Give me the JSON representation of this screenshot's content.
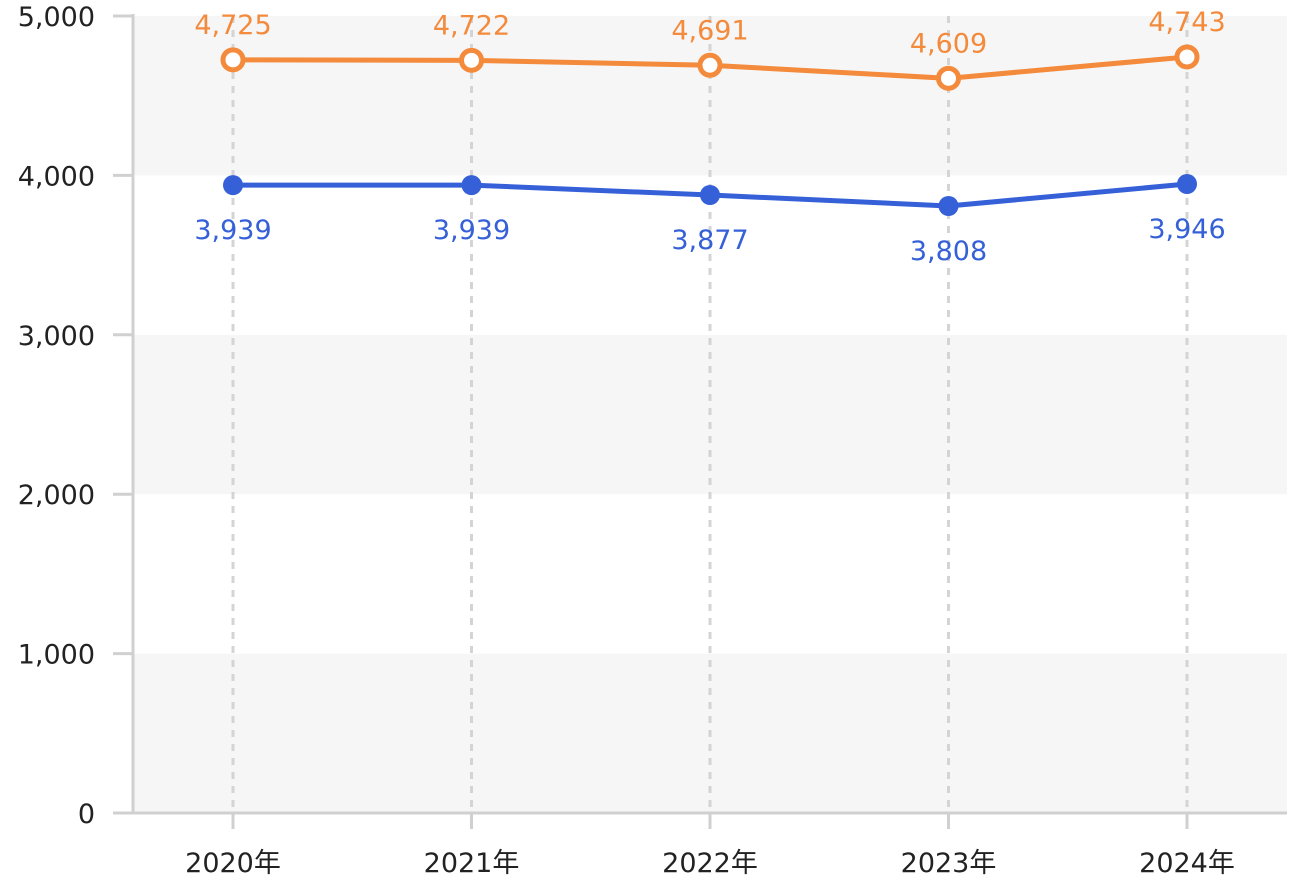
{
  "chart_data": {
    "type": "line",
    "categories": [
      "2020年",
      "2021年",
      "2022年",
      "2023年",
      "2024年"
    ],
    "series": [
      {
        "values": [
          4725,
          4722,
          4691,
          4609,
          4743
        ],
        "labels": [
          "4,725",
          "4,722",
          "4,691",
          "4,609",
          "4,743"
        ],
        "color": "#F38A3C",
        "marker": "hollow-circle",
        "label_position": "above"
      },
      {
        "values": [
          3939,
          3939,
          3877,
          3808,
          3946
        ],
        "labels": [
          "3,939",
          "3,939",
          "3,877",
          "3,808",
          "3,946"
        ],
        "color": "#3560D8",
        "marker": "filled-circle",
        "label_position": "below"
      }
    ],
    "ylim": [
      0,
      5000
    ],
    "yticks": [
      0,
      1000,
      2000,
      3000,
      4000,
      5000
    ],
    "ytick_labels": [
      "0",
      "1,000",
      "2,000",
      "3,000",
      "4,000",
      "5,000"
    ],
    "title": "",
    "xlabel": "",
    "ylabel": "",
    "grid": "alternating horizontal bands with dashed vertical lines",
    "legend": "none"
  }
}
